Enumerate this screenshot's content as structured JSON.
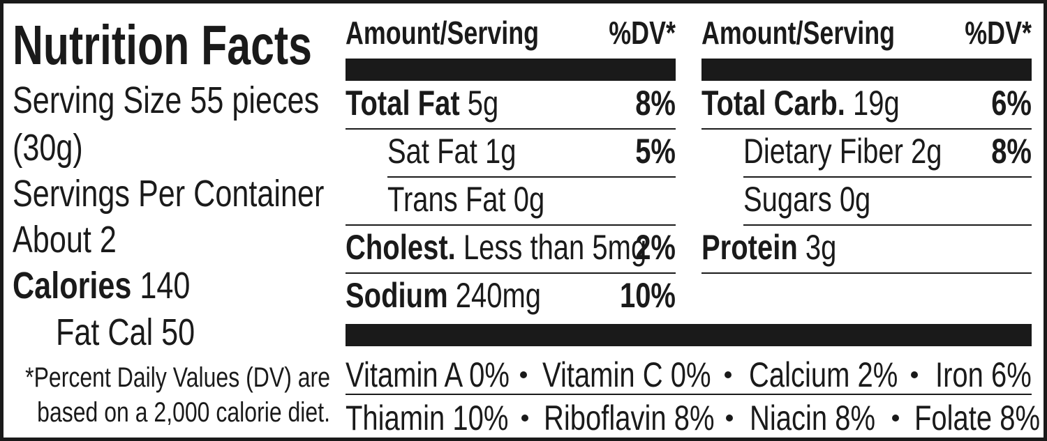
{
  "title": "Nutrition Facts",
  "serving": [
    "Serving Size 55 pieces",
    "(30g)",
    "Servings Per Container",
    "About 2"
  ],
  "calories": {
    "name": "Calories",
    "amount": "140"
  },
  "fat_calories": "Fat Cal 50",
  "footnote": [
    "*Percent Daily Values (DV) are",
    "based on a 2,000 calorie diet."
  ],
  "columns": [
    {
      "header": {
        "amount": "Amount/Serving",
        "dv": "%DV*"
      },
      "rows": [
        {
          "name": "Total Fat",
          "amount": "5g",
          "dv": "8%"
        },
        {
          "sub": "Sat Fat 1g",
          "dv": "5%"
        },
        {
          "sub": "Trans Fat 0g"
        },
        {
          "name": "Cholest.",
          "amount": "Less than 5mg",
          "dv": "2%"
        },
        {
          "name": "Sodium",
          "amount": "240mg",
          "dv": "10%"
        }
      ]
    },
    {
      "header": {
        "amount": "Amount/Serving",
        "dv": "%DV*"
      },
      "rows": [
        {
          "name": "Total Carb.",
          "amount": "19g",
          "dv": "6%"
        },
        {
          "sub": "Dietary Fiber 2g",
          "dv": "8%"
        },
        {
          "sub": "Sugars 0g"
        },
        {
          "name": "Protein",
          "amount": "3g"
        }
      ]
    }
  ],
  "vitamins": [
    [
      "Vitamin A 0%",
      "Vitamin C 0%",
      "Calcium 2%",
      "Iron 6%"
    ],
    [
      "Thiamin 10%",
      "Riboflavin 8%",
      "Niacin 8%",
      "Folate 8%"
    ]
  ]
}
